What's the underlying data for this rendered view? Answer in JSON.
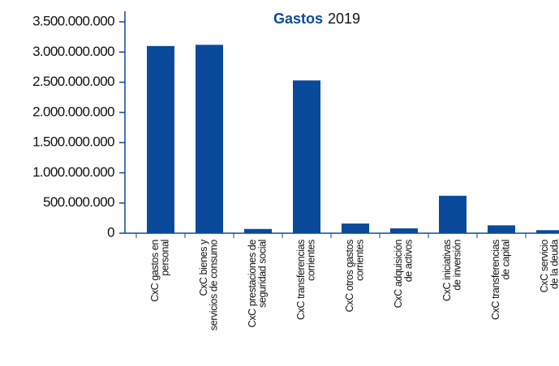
{
  "chart_data": {
    "type": "bar",
    "title_parts": [
      "Gastos",
      "2019"
    ],
    "title_color": "#0a4a9a",
    "categories": [
      "CxC gastos en\npersonal",
      "CxC  bienes y\nservicios de consumo",
      "CxC  prestaciones de\nseguridad social",
      "CxC transferencias\ncorrientes",
      "CxC otros gastos\ncorrientes",
      "CxC adquisición\nde activos",
      "CxC iniciativas\nde inversión",
      "CxC transferencias\nde capital",
      "CxC servicio\nde la deuda"
    ],
    "values": [
      3100000000,
      3120000000,
      70000000,
      2530000000,
      160000000,
      80000000,
      620000000,
      130000000,
      50000000
    ],
    "color": "#0a4a9a",
    "ylim": [
      0,
      3500000000
    ],
    "yticks": [
      0,
      {
        "value": 500000000,
        "label": "500.000.000"
      },
      {
        "value": 1000000000,
        "label": "1.000.000.000"
      },
      {
        "value": 1500000000,
        "label": "1.500.000.000"
      },
      {
        "value": 2000000000,
        "label": "2.000.000.000"
      },
      {
        "value": 2500000000,
        "label": "2.500.000.000"
      },
      {
        "value": 3000000000,
        "label": "3.000.000.000"
      },
      {
        "value": 3500000000,
        "label": "3.500.000.000"
      }
    ],
    "grid": false
  }
}
